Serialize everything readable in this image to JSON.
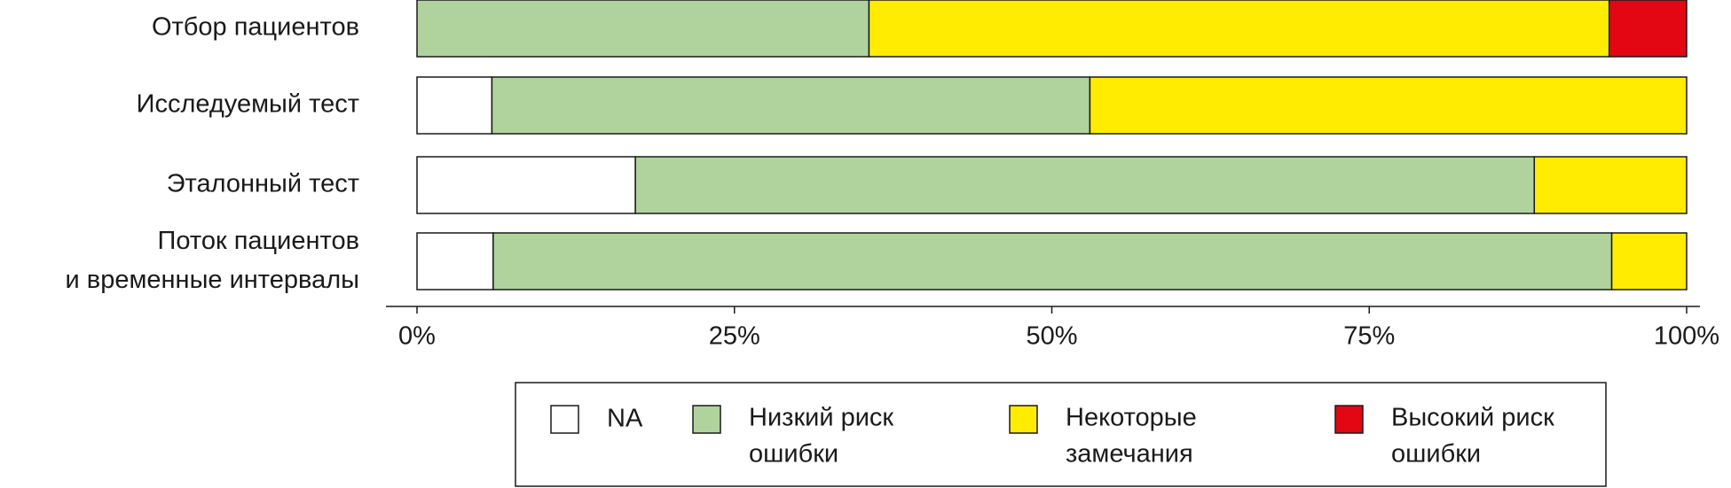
{
  "chart_data": {
    "type": "stacked-barh",
    "categories": [
      "Отбор пациентов",
      "Исследуемый тест",
      "Эталонный тест",
      "Поток пациентов\nи временные интервалы"
    ],
    "series": [
      {
        "name": "NA",
        "color": "#ffffff",
        "values": [
          0,
          5.9,
          17.2,
          6.0
        ]
      },
      {
        "name": "Низкий риск\nошибки",
        "color": "#b0d39e",
        "values": [
          35.6,
          47.1,
          70.8,
          88.1
        ]
      },
      {
        "name": "Некоторые\nзамечания",
        "color": "#ffec00",
        "values": [
          58.3,
          47.0,
          12.0,
          5.9
        ]
      },
      {
        "name": "Высокий риск\nошибки",
        "color": "#e30613",
        "values": [
          6.1,
          0,
          0,
          0
        ]
      }
    ],
    "xlim": [
      0,
      100
    ],
    "xticks": [
      {
        "value": 0,
        "label": "0%"
      },
      {
        "value": 25,
        "label": "25%"
      },
      {
        "value": 50,
        "label": "50%"
      },
      {
        "value": 75,
        "label": "75%"
      },
      {
        "value": 100,
        "label": "100%"
      }
    ],
    "legend": "bottom"
  }
}
